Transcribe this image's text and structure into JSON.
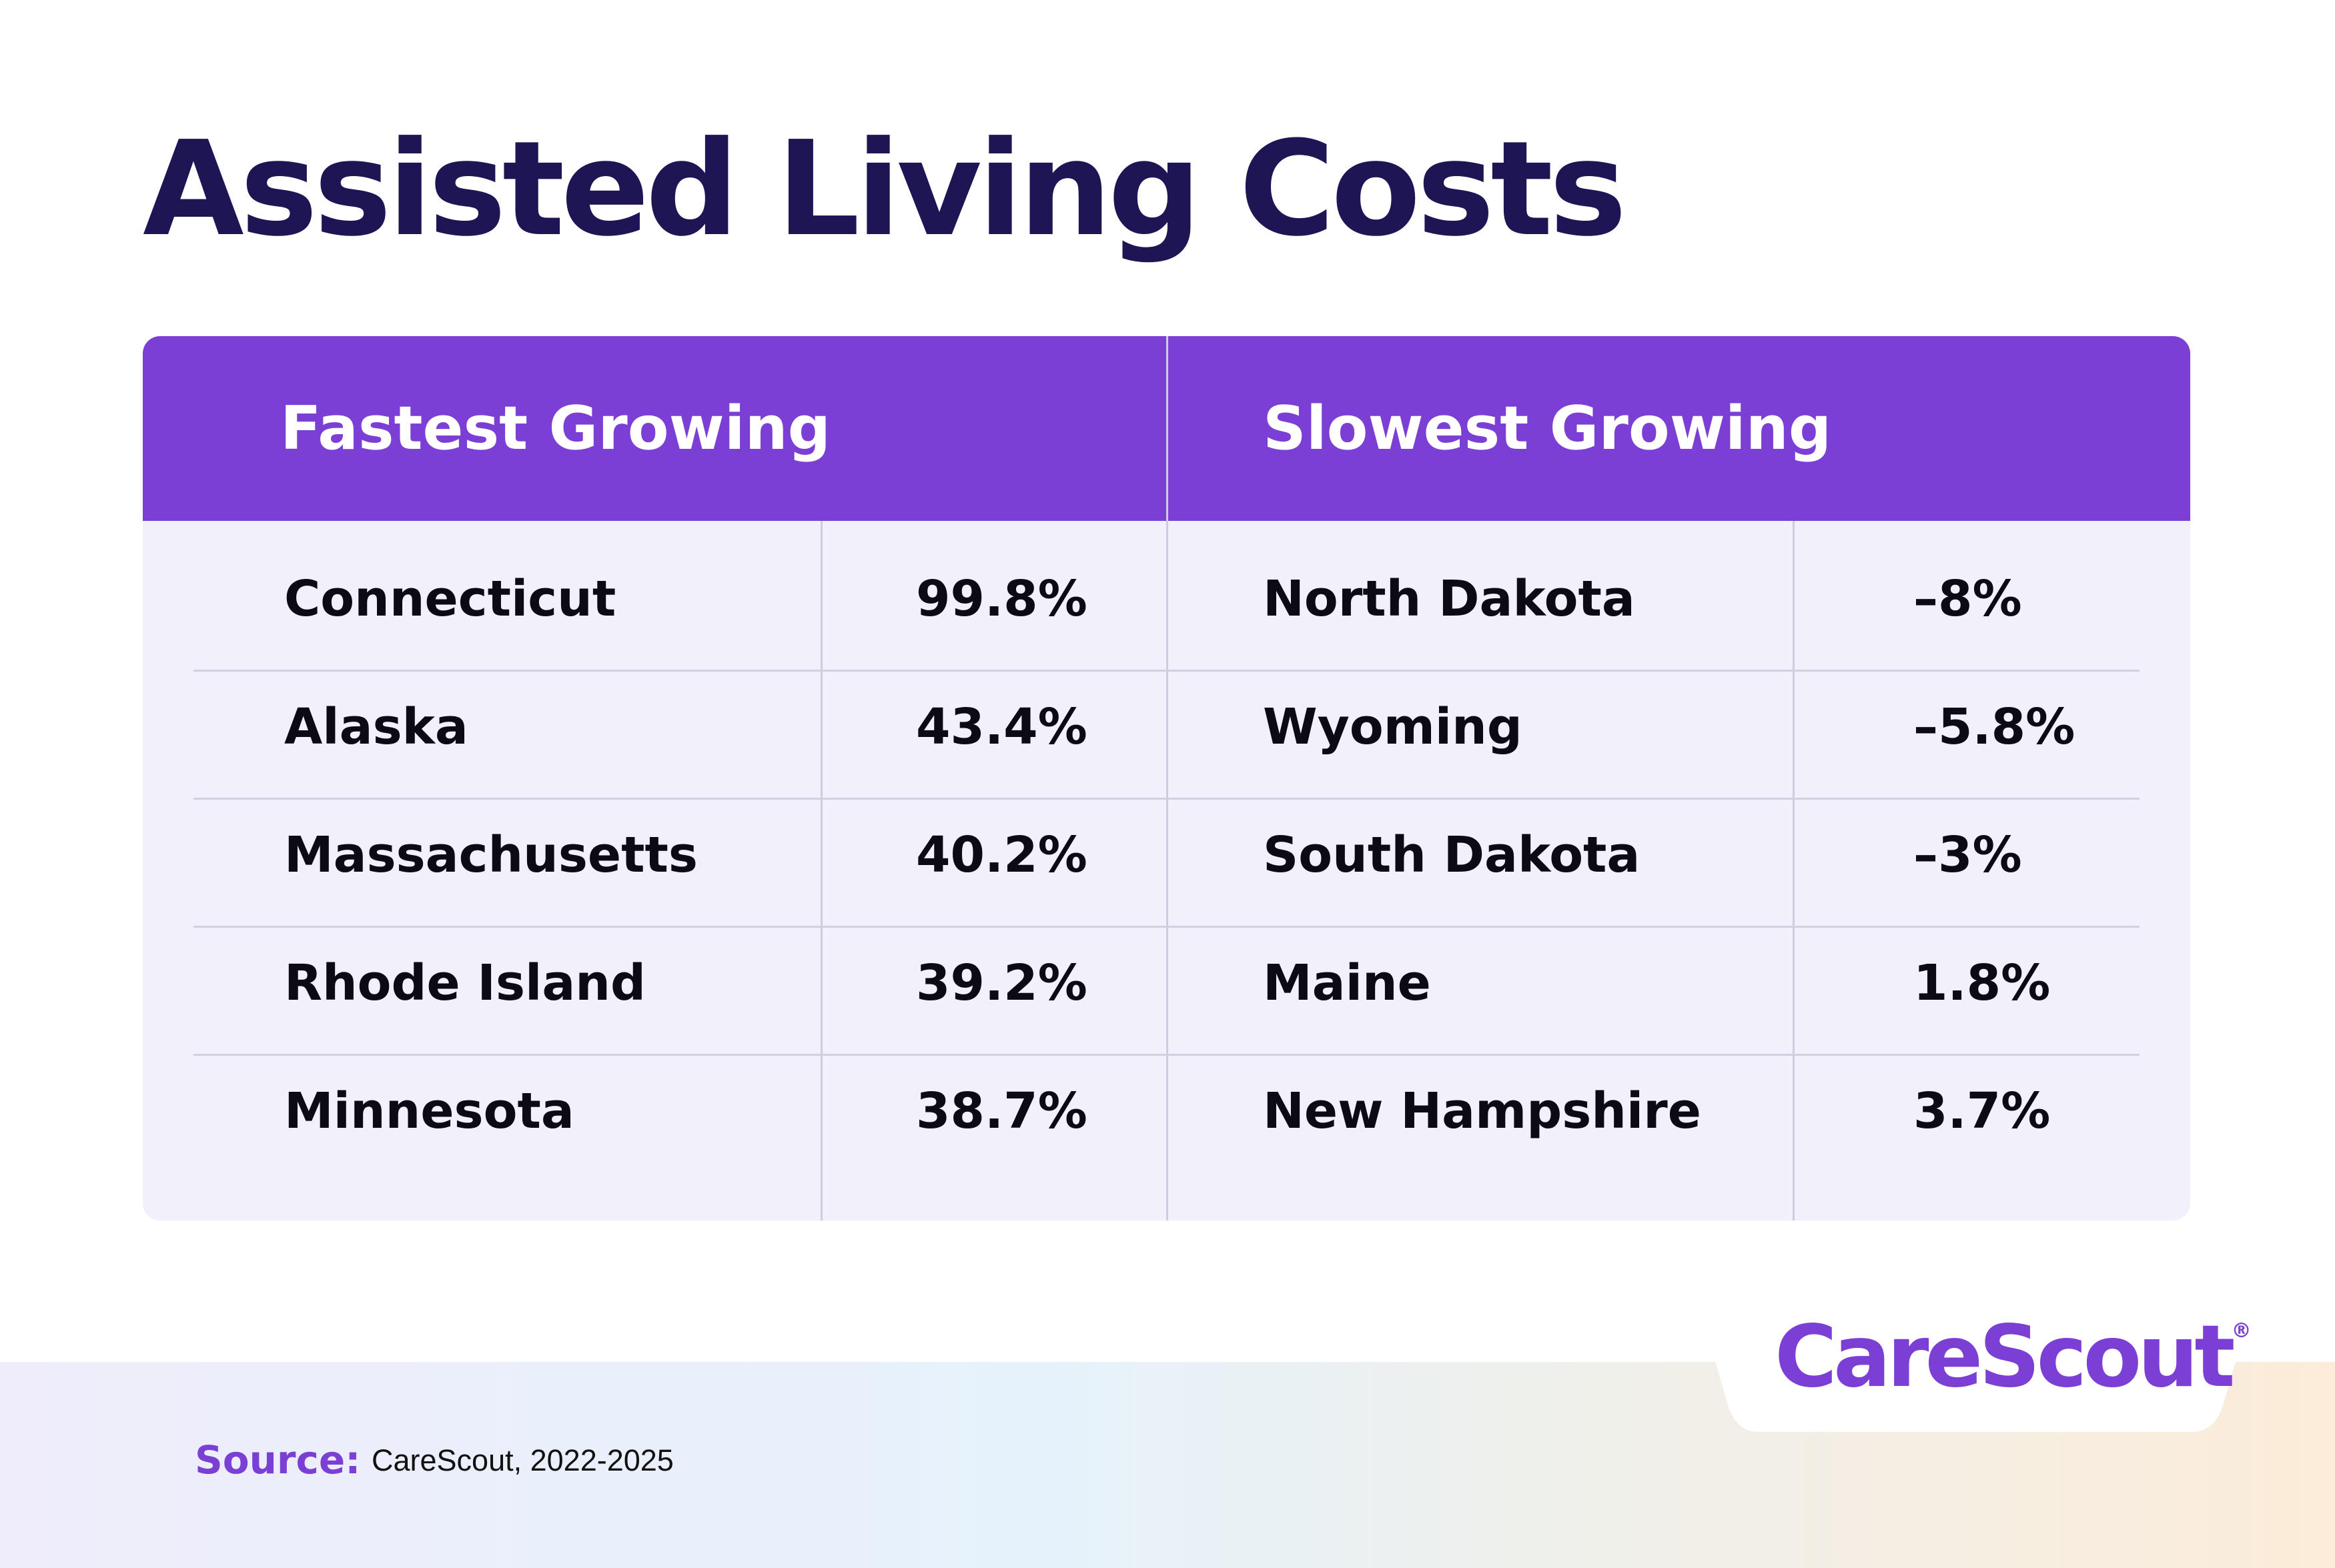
{
  "title": "Assisted Living Costs",
  "table": {
    "headers": [
      "Fastest Growing",
      "Slowest Growing"
    ],
    "fastest": [
      {
        "state": "Connecticut",
        "value": "99.8%"
      },
      {
        "state": "Alaska",
        "value": "43.4%"
      },
      {
        "state": "Massachusetts",
        "value": "40.2%"
      },
      {
        "state": "Rhode Island",
        "value": "39.2%"
      },
      {
        "state": "Minnesota",
        "value": "38.7%"
      }
    ],
    "slowest": [
      {
        "state": "North Dakota",
        "value": "–8%"
      },
      {
        "state": "Wyoming",
        "value": "–5.8%"
      },
      {
        "state": "South Dakota",
        "value": "–3%"
      },
      {
        "state": "Maine",
        "value": "1.8%"
      },
      {
        "state": "New Hampshire",
        "value": "3.7%"
      }
    ]
  },
  "footer": {
    "source_label": "Source:",
    "source_text": "CareScout, 2022-2025",
    "logo_text": "CareScout",
    "logo_mark": "®"
  },
  "colors": {
    "brand_purple": "#7b3fd6",
    "title_navy": "#1e1654",
    "table_bg": "#f2f0fa"
  }
}
